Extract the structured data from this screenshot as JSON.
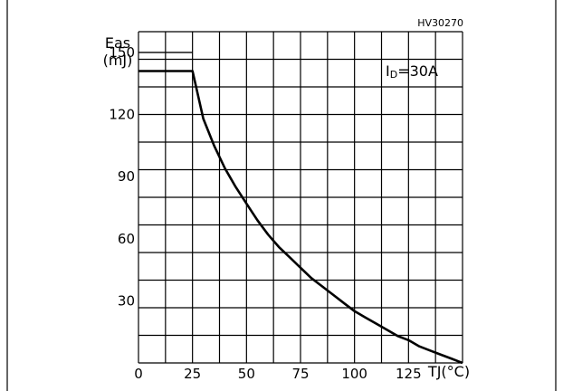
{
  "chart_data": {
    "type": "line",
    "code": "HV30270",
    "ylabel_line1": "Eas",
    "ylabel_line2": "(mJ)",
    "xlabel": "TJ(°C)",
    "annotation": "ID=30A",
    "annotation_main": "I",
    "annotation_sub": "D",
    "annotation_rest": "=30A",
    "xlim": [
      0,
      150
    ],
    "ylim": [
      0,
      160
    ],
    "x_ticks": [
      0,
      25,
      50,
      75,
      100,
      125
    ],
    "y_ticks": [
      30,
      60,
      90,
      120,
      150
    ],
    "series": [
      {
        "x": [
          0,
          25,
          30,
          35,
          40,
          45,
          50,
          55,
          60,
          65,
          70,
          75,
          80,
          85,
          90,
          95,
          100,
          105,
          110,
          115,
          120,
          125,
          130,
          135,
          140,
          145,
          150
        ],
        "y": [
          141,
          141,
          118,
          105,
          94,
          85,
          77,
          69,
          62,
          56,
          51,
          46,
          41,
          37,
          33,
          29,
          25,
          22,
          19,
          16,
          13,
          11,
          8,
          6,
          4,
          2,
          0
        ]
      },
      {
        "x": [
          0,
          25
        ],
        "y": [
          150,
          150
        ]
      }
    ]
  }
}
